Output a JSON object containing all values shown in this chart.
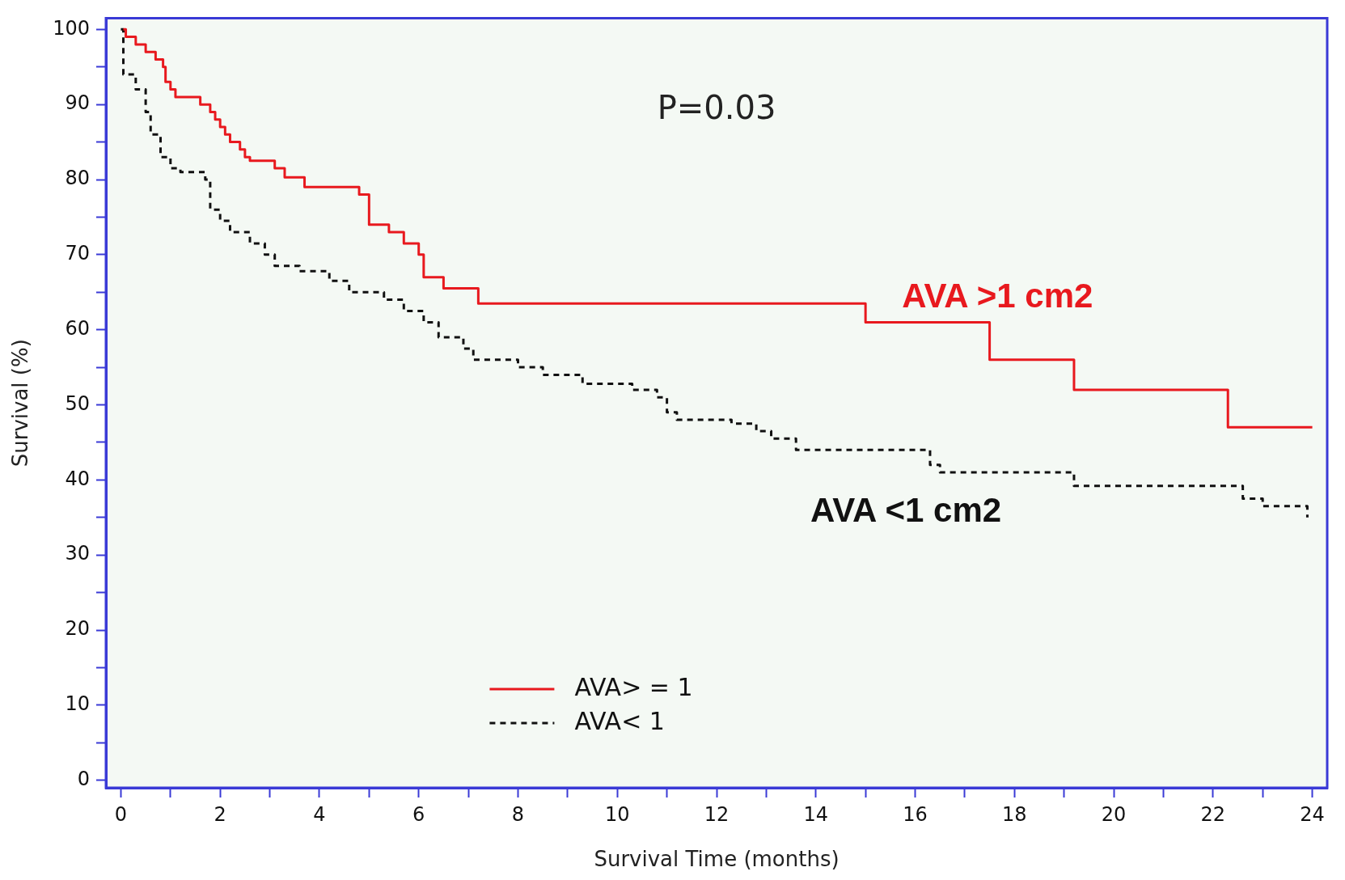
{
  "chart_data": {
    "type": "step",
    "xlabel": "Survival Time (months)",
    "ylabel": "Survival (%)",
    "xlim": [
      -0.3,
      24.3
    ],
    "ylim": [
      -1,
      101.5
    ],
    "xticks": [
      0,
      {
        "value": 1,
        "label": null
      },
      2,
      {
        "value": 3,
        "label": null
      },
      4,
      {
        "value": 5,
        "label": null
      },
      6,
      {
        "value": 7,
        "label": null
      },
      8,
      {
        "value": 9,
        "label": null
      },
      10,
      {
        "value": 11,
        "label": null
      },
      12,
      {
        "value": 13,
        "label": null
      },
      14,
      {
        "value": 15,
        "label": null
      },
      16,
      {
        "value": 17,
        "label": null
      },
      18,
      {
        "value": 19,
        "label": null
      },
      20,
      {
        "value": 21,
        "label": null
      },
      22,
      {
        "value": 23,
        "label": null
      },
      24
    ],
    "yticks": [
      0,
      {
        "value": 5,
        "label": null
      },
      10,
      {
        "value": 15,
        "label": null
      },
      20,
      {
        "value": 25,
        "label": null
      },
      30,
      {
        "value": 35,
        "label": null
      },
      40,
      {
        "value": 45,
        "label": null
      },
      50,
      {
        "value": 55,
        "label": null
      },
      60,
      {
        "value": 65,
        "label": null
      },
      70,
      {
        "value": 75,
        "label": null
      },
      80,
      {
        "value": 85,
        "label": null
      },
      90,
      {
        "value": 95,
        "label": null
      },
      100
    ],
    "grid": false,
    "legend": "bottom",
    "marker": "none",
    "series": [
      {
        "name": "AVA> = 1",
        "color": "#e8191e",
        "line_style": "solid",
        "x": [
          0.05,
          0.1,
          0.3,
          0.5,
          0.7,
          0.85,
          0.9,
          1.0,
          1.1,
          1.6,
          1.8,
          1.9,
          2.0,
          2.1,
          2.2,
          2.4,
          2.5,
          2.6,
          3.1,
          3.3,
          3.7,
          4.8,
          5.0,
          5.4,
          5.7,
          6.0,
          6.1,
          6.5,
          7.2,
          15.0,
          17.5,
          19.2,
          22.3,
          24
        ],
        "values": [
          100,
          99,
          98,
          97,
          96,
          95,
          93,
          92,
          91,
          90,
          89,
          88,
          87,
          86,
          85,
          84,
          83,
          82.5,
          81.5,
          80.3,
          79,
          78,
          74,
          73,
          71.5,
          70,
          67,
          65.5,
          63.5,
          61,
          56,
          52,
          47,
          47
        ]
      },
      {
        "name": "AVA< 1",
        "color": "#111111",
        "line_style": "dashed",
        "x": [
          0,
          0.05,
          0.3,
          0.5,
          0.6,
          0.8,
          1.0,
          1.2,
          1.7,
          1.8,
          2.0,
          2.2,
          2.6,
          2.9,
          3.1,
          3.6,
          4.2,
          4.6,
          5.3,
          5.7,
          6.1,
          6.4,
          6.9,
          7.1,
          8.0,
          8.5,
          9.3,
          10.3,
          10.8,
          11.0,
          11.2,
          12.3,
          12.8,
          13.1,
          13.6,
          16.3,
          16.5,
          19.2,
          22.6,
          23.0,
          23.9
        ],
        "values": [
          100,
          94,
          92,
          89,
          86,
          83,
          81.5,
          81,
          80,
          76,
          74.5,
          73,
          71.5,
          70,
          68.5,
          67.8,
          66.5,
          65,
          64,
          62.5,
          61,
          59,
          57.5,
          56,
          55,
          54,
          52.8,
          52,
          51,
          49,
          48,
          47.5,
          46.5,
          45.5,
          44,
          42,
          41,
          39.2,
          37.5,
          36.5,
          35
        ]
      }
    ],
    "annotations": [
      "P=0.03",
      "AVA >1 cm2",
      "AVA <1 cm2"
    ]
  }
}
